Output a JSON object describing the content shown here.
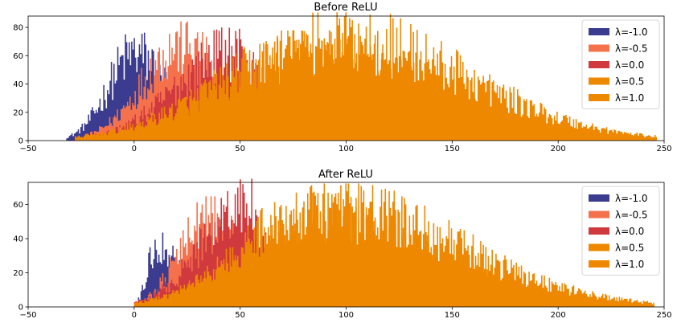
{
  "chart_data": [
    {
      "type": "bar",
      "title": "Before ReLU",
      "xlabel": "",
      "ylabel": "",
      "xlim": [
        -50,
        250
      ],
      "ylim": [
        0,
        88
      ],
      "xticks": [
        -50,
        0,
        50,
        100,
        150,
        200,
        250
      ],
      "yticks": [
        0,
        20,
        40,
        60,
        80
      ],
      "grid": false,
      "legend_position": "top-right",
      "series": [
        {
          "name": "λ=-1.0",
          "color": "#3b3b8f",
          "center": 0,
          "min": -32,
          "max": 40,
          "peak": 72
        },
        {
          "name": "λ=-0.5",
          "color": "#f4714c",
          "center": 22,
          "min": -25,
          "max": 70,
          "peak": 78
        },
        {
          "name": "λ=0.0",
          "color": "#d0393e",
          "center": 48,
          "min": -22,
          "max": 75,
          "peak": 74
        },
        {
          "name": "λ=0.5",
          "color": "#ee8800",
          "center": 80,
          "min": -28,
          "max": 225,
          "peak": 72
        },
        {
          "name": "λ=1.0",
          "color": "#ee8800",
          "center": 100,
          "min": -18,
          "max": 246,
          "peak": 84
        }
      ]
    },
    {
      "type": "bar",
      "title": "After ReLU",
      "xlabel": "",
      "ylabel": "",
      "xlim": [
        -50,
        250
      ],
      "ylim": [
        0,
        73
      ],
      "xticks": [
        -50,
        0,
        50,
        100,
        150,
        200,
        250
      ],
      "yticks": [
        0,
        20,
        40,
        60
      ],
      "grid": false,
      "legend_position": "top-right",
      "series": [
        {
          "name": "λ=-1.0",
          "color": "#3b3b8f",
          "center": 10,
          "min": 0,
          "max": 40,
          "peak": 42
        },
        {
          "name": "λ=-0.5",
          "color": "#f4714c",
          "center": 35,
          "min": 0,
          "max": 75,
          "peak": 60
        },
        {
          "name": "λ=0.0",
          "color": "#d0393e",
          "center": 52,
          "min": 0,
          "max": 75,
          "peak": 70
        },
        {
          "name": "λ=0.5",
          "color": "#ee8800",
          "center": 80,
          "min": 0,
          "max": 225,
          "peak": 62
        },
        {
          "name": "λ=1.0",
          "color": "#ee8800",
          "center": 95,
          "min": 0,
          "max": 245,
          "peak": 67
        }
      ]
    }
  ]
}
